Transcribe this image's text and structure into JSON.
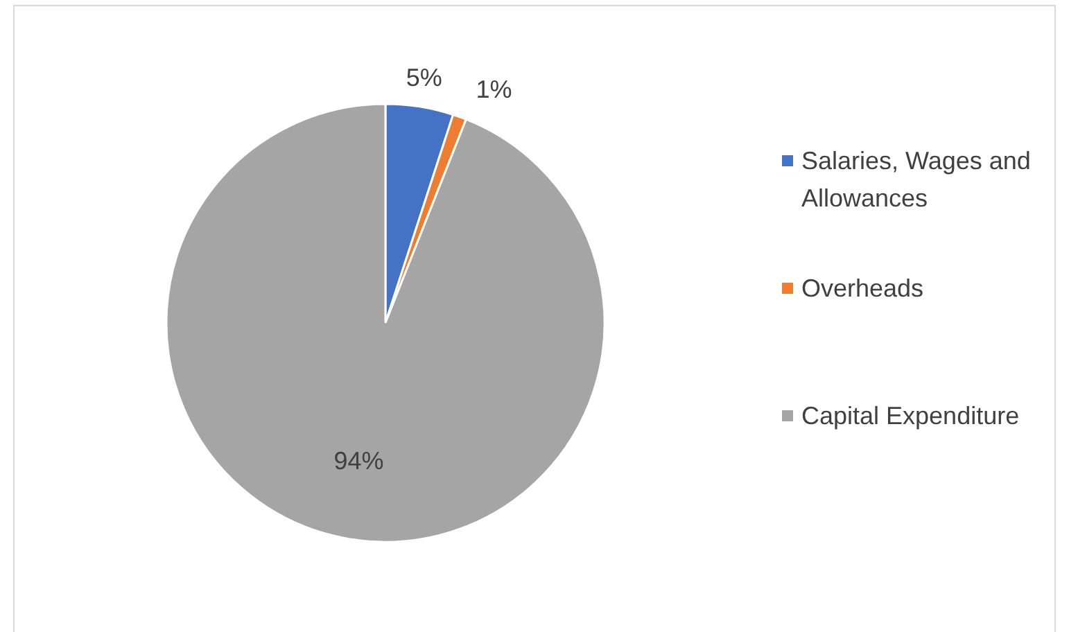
{
  "chart_data": {
    "type": "pie",
    "categories": [
      "Salaries, Wages and Allowances",
      "Overheads",
      "Capital Expenditure"
    ],
    "values": [
      5,
      1,
      94
    ],
    "colors": [
      "#4472c4",
      "#ed7d31",
      "#a5a5a5"
    ],
    "value_labels": [
      "5%",
      "1%",
      "94%"
    ],
    "legend": "right"
  }
}
